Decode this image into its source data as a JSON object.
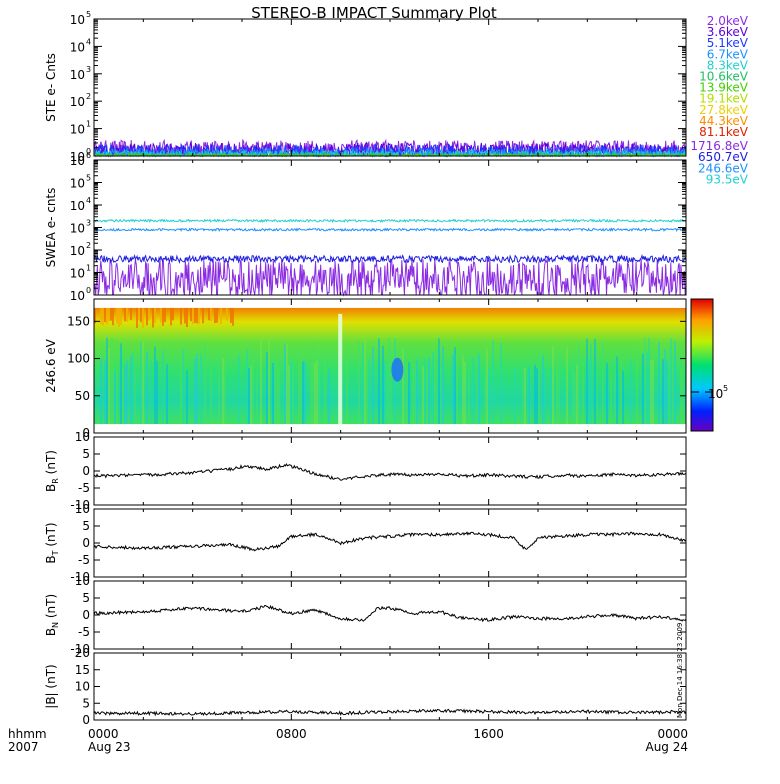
{
  "title": "STEREO-B IMPACT Summary Plot",
  "colors": {
    "frame": "#000000",
    "trace": "#000000"
  },
  "stamp": "Mon Dec 14 16:38:23 2009",
  "time_axis": {
    "corner_top": "hhmm",
    "corner_bottom": "2007",
    "ticks": [
      {
        "time": "0000",
        "date": "Aug 23",
        "hour": 0
      },
      {
        "time": "0800",
        "date": "",
        "hour": 8
      },
      {
        "time": "1600",
        "date": "",
        "hour": 16
      },
      {
        "time": "0000",
        "date": "Aug 24",
        "hour": 24
      }
    ]
  },
  "chart_data": [
    {
      "type": "line",
      "id": "ste",
      "ylabel": "STE e- Cnts",
      "yscale": "log",
      "ylim": [
        1,
        100000
      ],
      "yticks": [
        {
          "v": 1,
          "label": "10",
          "exp": "0"
        },
        {
          "v": 10,
          "label": "10",
          "exp": "1"
        },
        {
          "v": 100,
          "label": "10",
          "exp": "2"
        },
        {
          "v": 1000,
          "label": "10",
          "exp": "3"
        },
        {
          "v": 10000,
          "label": "10",
          "exp": "4"
        },
        {
          "v": 100000,
          "label": "10",
          "exp": "5"
        }
      ],
      "series": [
        {
          "name": "2.0keV",
          "color": "#8a2be2",
          "level": 1.7,
          "noise": 0.35
        },
        {
          "name": "3.6keV",
          "color": "#5a00d8",
          "level": 1.5,
          "noise": 0.3
        },
        {
          "name": "5.1keV",
          "color": "#1e3cff",
          "level": 1.35,
          "noise": 0.28
        },
        {
          "name": "6.7keV",
          "color": "#1e90ff",
          "level": 1.2,
          "noise": 0.2
        },
        {
          "name": "8.3keV",
          "color": "#20d0d0",
          "level": 1.1,
          "noise": 0.15
        },
        {
          "name": "10.6keV",
          "color": "#20c060",
          "level": 1.05,
          "noise": 0.1
        },
        {
          "name": "13.9keV",
          "color": "#40d000",
          "level": 1.0,
          "noise": 0.05
        },
        {
          "name": "19.1keV",
          "color": "#b0e000",
          "level": 1.0,
          "noise": 0.02
        },
        {
          "name": "27.8keV",
          "color": "#f0d000",
          "level": 1.0,
          "noise": 0.0
        },
        {
          "name": "44.3keV",
          "color": "#ff8c00",
          "level": 1.0,
          "noise": 0.0
        },
        {
          "name": "81.1keV",
          "color": "#e02000",
          "level": 1.0,
          "noise": 0.0
        }
      ]
    },
    {
      "type": "line",
      "id": "swea",
      "ylabel": "SWEA e- cnts",
      "yscale": "log",
      "ylim": [
        1,
        1000000
      ],
      "yticks": [
        {
          "v": 1,
          "label": "10",
          "exp": "0"
        },
        {
          "v": 10,
          "label": "10",
          "exp": "1"
        },
        {
          "v": 100,
          "label": "10",
          "exp": "2"
        },
        {
          "v": 1000,
          "label": "10",
          "exp": "3"
        },
        {
          "v": 10000,
          "label": "10",
          "exp": "4"
        },
        {
          "v": 100000,
          "label": "10",
          "exp": "5"
        },
        {
          "v": 1000000,
          "label": "10",
          "exp": "6"
        }
      ],
      "series": [
        {
          "name": "1716.8eV",
          "color": "#8a2be2",
          "level": 5,
          "noise": 0.9
        },
        {
          "name": "650.7eV",
          "color": "#1e1ee0",
          "level": 40,
          "noise": 0.15
        },
        {
          "name": "246.6eV",
          "color": "#1e90ff",
          "level": 800,
          "noise": 0.05
        },
        {
          "name": "93.5eV",
          "color": "#20d0d0",
          "level": 2000,
          "noise": 0.05
        }
      ]
    },
    {
      "type": "heatmap",
      "id": "pad",
      "ylabel": "246.6 eV",
      "ylim": [
        0,
        180
      ],
      "yticks": [
        0,
        50,
        100,
        150
      ],
      "colorbar_label": "10",
      "colorbar_exp": "5"
    },
    {
      "type": "line",
      "id": "br",
      "ylabel": "B",
      "ylabel_sub": "R",
      "ylabel_unit": "(nT)",
      "ylim": [
        -10,
        10
      ],
      "yticks": [
        -10,
        -5,
        0,
        5,
        10
      ],
      "x": [
        0,
        2,
        4,
        5.5,
        6.2,
        7,
        7.8,
        8.4,
        9,
        10,
        11,
        12,
        13,
        14,
        15,
        16,
        17,
        18,
        19,
        20,
        21,
        22,
        23,
        24
      ],
      "values": [
        -1.5,
        -1.2,
        -0.5,
        0.5,
        1.5,
        0.5,
        1.8,
        0.5,
        -1,
        -2.5,
        -1.5,
        -1,
        -1.2,
        -0.8,
        -1.5,
        -1.2,
        -1.5,
        -1.8,
        -1.2,
        -1.5,
        -1.0,
        -1.3,
        -1.0,
        -0.8
      ]
    },
    {
      "type": "line",
      "id": "bt",
      "ylabel": "B",
      "ylabel_sub": "T",
      "ylabel_unit": "(nT)",
      "ylim": [
        -10,
        10
      ],
      "yticks": [
        -10,
        -5,
        0,
        5,
        10
      ],
      "x": [
        0,
        2,
        4,
        5.5,
        6.5,
        7.5,
        8,
        9,
        10,
        11,
        12,
        13,
        14,
        15,
        16,
        17,
        17.5,
        18,
        19,
        20,
        21,
        22,
        23,
        24
      ],
      "values": [
        -1,
        -1.5,
        -1,
        -0.5,
        -2,
        -1,
        2,
        2.5,
        0,
        1.5,
        2,
        2.5,
        2.5,
        2.8,
        2.5,
        1.5,
        -2,
        1.5,
        2,
        2.5,
        2.5,
        2.8,
        2.5,
        0.5
      ]
    },
    {
      "type": "line",
      "id": "bn",
      "ylabel": "B",
      "ylabel_sub": "N",
      "ylabel_unit": "(nT)",
      "ylim": [
        -10,
        10
      ],
      "yticks": [
        -10,
        -5,
        0,
        5,
        10
      ],
      "x": [
        0,
        2,
        4,
        6,
        7,
        8,
        9,
        10,
        11,
        11.5,
        12,
        13,
        14,
        15,
        16,
        17,
        18,
        19,
        20,
        21,
        22,
        23,
        24
      ],
      "values": [
        0.5,
        1,
        2,
        1,
        2.5,
        0.5,
        1.5,
        -1,
        -1.5,
        2,
        2,
        0.5,
        1,
        -1,
        -1.5,
        -0.5,
        -1,
        -1.2,
        -0.5,
        0,
        -1,
        -0.5,
        -1.5
      ]
    },
    {
      "type": "line",
      "id": "bmag",
      "ylabel": "|B| (nT)",
      "ylim": [
        0,
        20
      ],
      "yticks": [
        0,
        5,
        10,
        15,
        20
      ],
      "x": [
        0,
        2,
        4,
        6,
        8,
        10,
        12,
        14,
        16,
        18,
        20,
        22,
        24
      ],
      "values": [
        2,
        2,
        1.8,
        2.2,
        2.5,
        2,
        2.5,
        2.8,
        2.5,
        2.2,
        2.5,
        2.2,
        2.5
      ]
    }
  ]
}
